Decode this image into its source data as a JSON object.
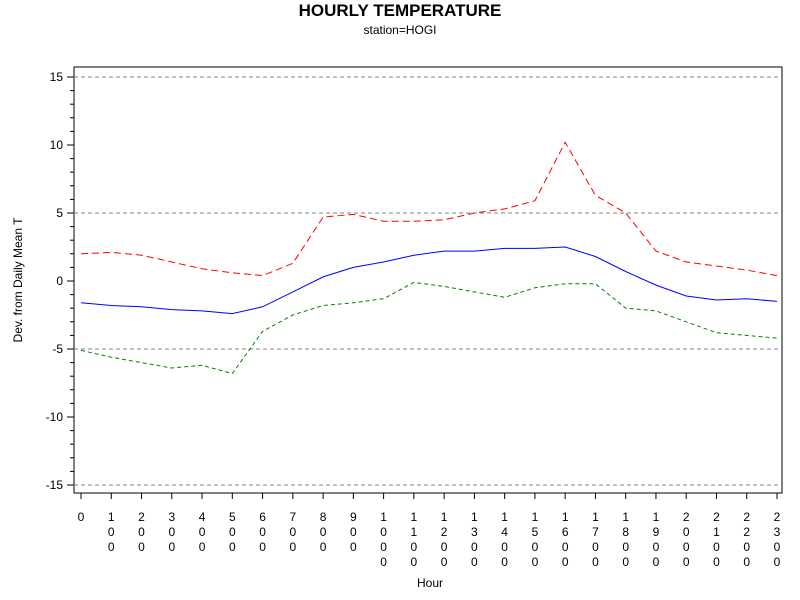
{
  "chart_data": {
    "type": "line",
    "title": "HOURLY TEMPERATURE",
    "subtitle": "station=HOGI",
    "xlabel": "Hour",
    "ylabel": "Dev. from Daily Mean T",
    "ylim": [
      -15,
      15
    ],
    "yticks": [
      -15,
      -10,
      -5,
      0,
      5,
      10,
      15
    ],
    "y_tick_labels": [
      "-15",
      "-10",
      "-5",
      "0",
      "5",
      "10",
      "15"
    ],
    "ref_lines": [
      -15,
      -5,
      5,
      15
    ],
    "categories": [
      "0",
      "100",
      "200",
      "300",
      "400",
      "500",
      "600",
      "700",
      "800",
      "900",
      "1000",
      "1100",
      "1200",
      "1300",
      "1400",
      "1500",
      "1600",
      "1700",
      "1800",
      "1900",
      "2000",
      "2100",
      "2200",
      "2300"
    ],
    "series": [
      {
        "color": "#ff0000",
        "style": "dashed",
        "values": [
          2.0,
          2.1,
          1.9,
          1.4,
          0.9,
          0.6,
          0.4,
          1.3,
          4.7,
          4.9,
          4.4,
          4.4,
          4.5,
          5.0,
          5.3,
          5.9,
          10.2,
          6.3,
          5.0,
          2.2,
          1.4,
          1.1,
          0.8,
          0.4
        ]
      },
      {
        "color": "#0000ff",
        "style": "solid",
        "values": [
          -1.6,
          -1.8,
          -1.9,
          -2.1,
          -2.2,
          -2.4,
          -1.9,
          -0.8,
          0.3,
          1.0,
          1.4,
          1.9,
          2.2,
          2.2,
          2.4,
          2.4,
          2.5,
          1.8,
          0.7,
          -0.3,
          -1.1,
          -1.4,
          -1.3,
          -1.5
        ]
      },
      {
        "color": "#008000",
        "style": "dashed",
        "values": [
          -5.1,
          -5.6,
          -6.0,
          -6.4,
          -6.2,
          -6.8,
          -3.7,
          -2.5,
          -1.8,
          -1.6,
          -1.3,
          -0.1,
          -0.4,
          -0.8,
          -1.2,
          -0.5,
          -0.2,
          -0.2,
          -2.0,
          -2.2,
          -3.0,
          -3.8,
          -4.0,
          -4.2
        ]
      }
    ],
    "grid": false,
    "legend": "none"
  }
}
